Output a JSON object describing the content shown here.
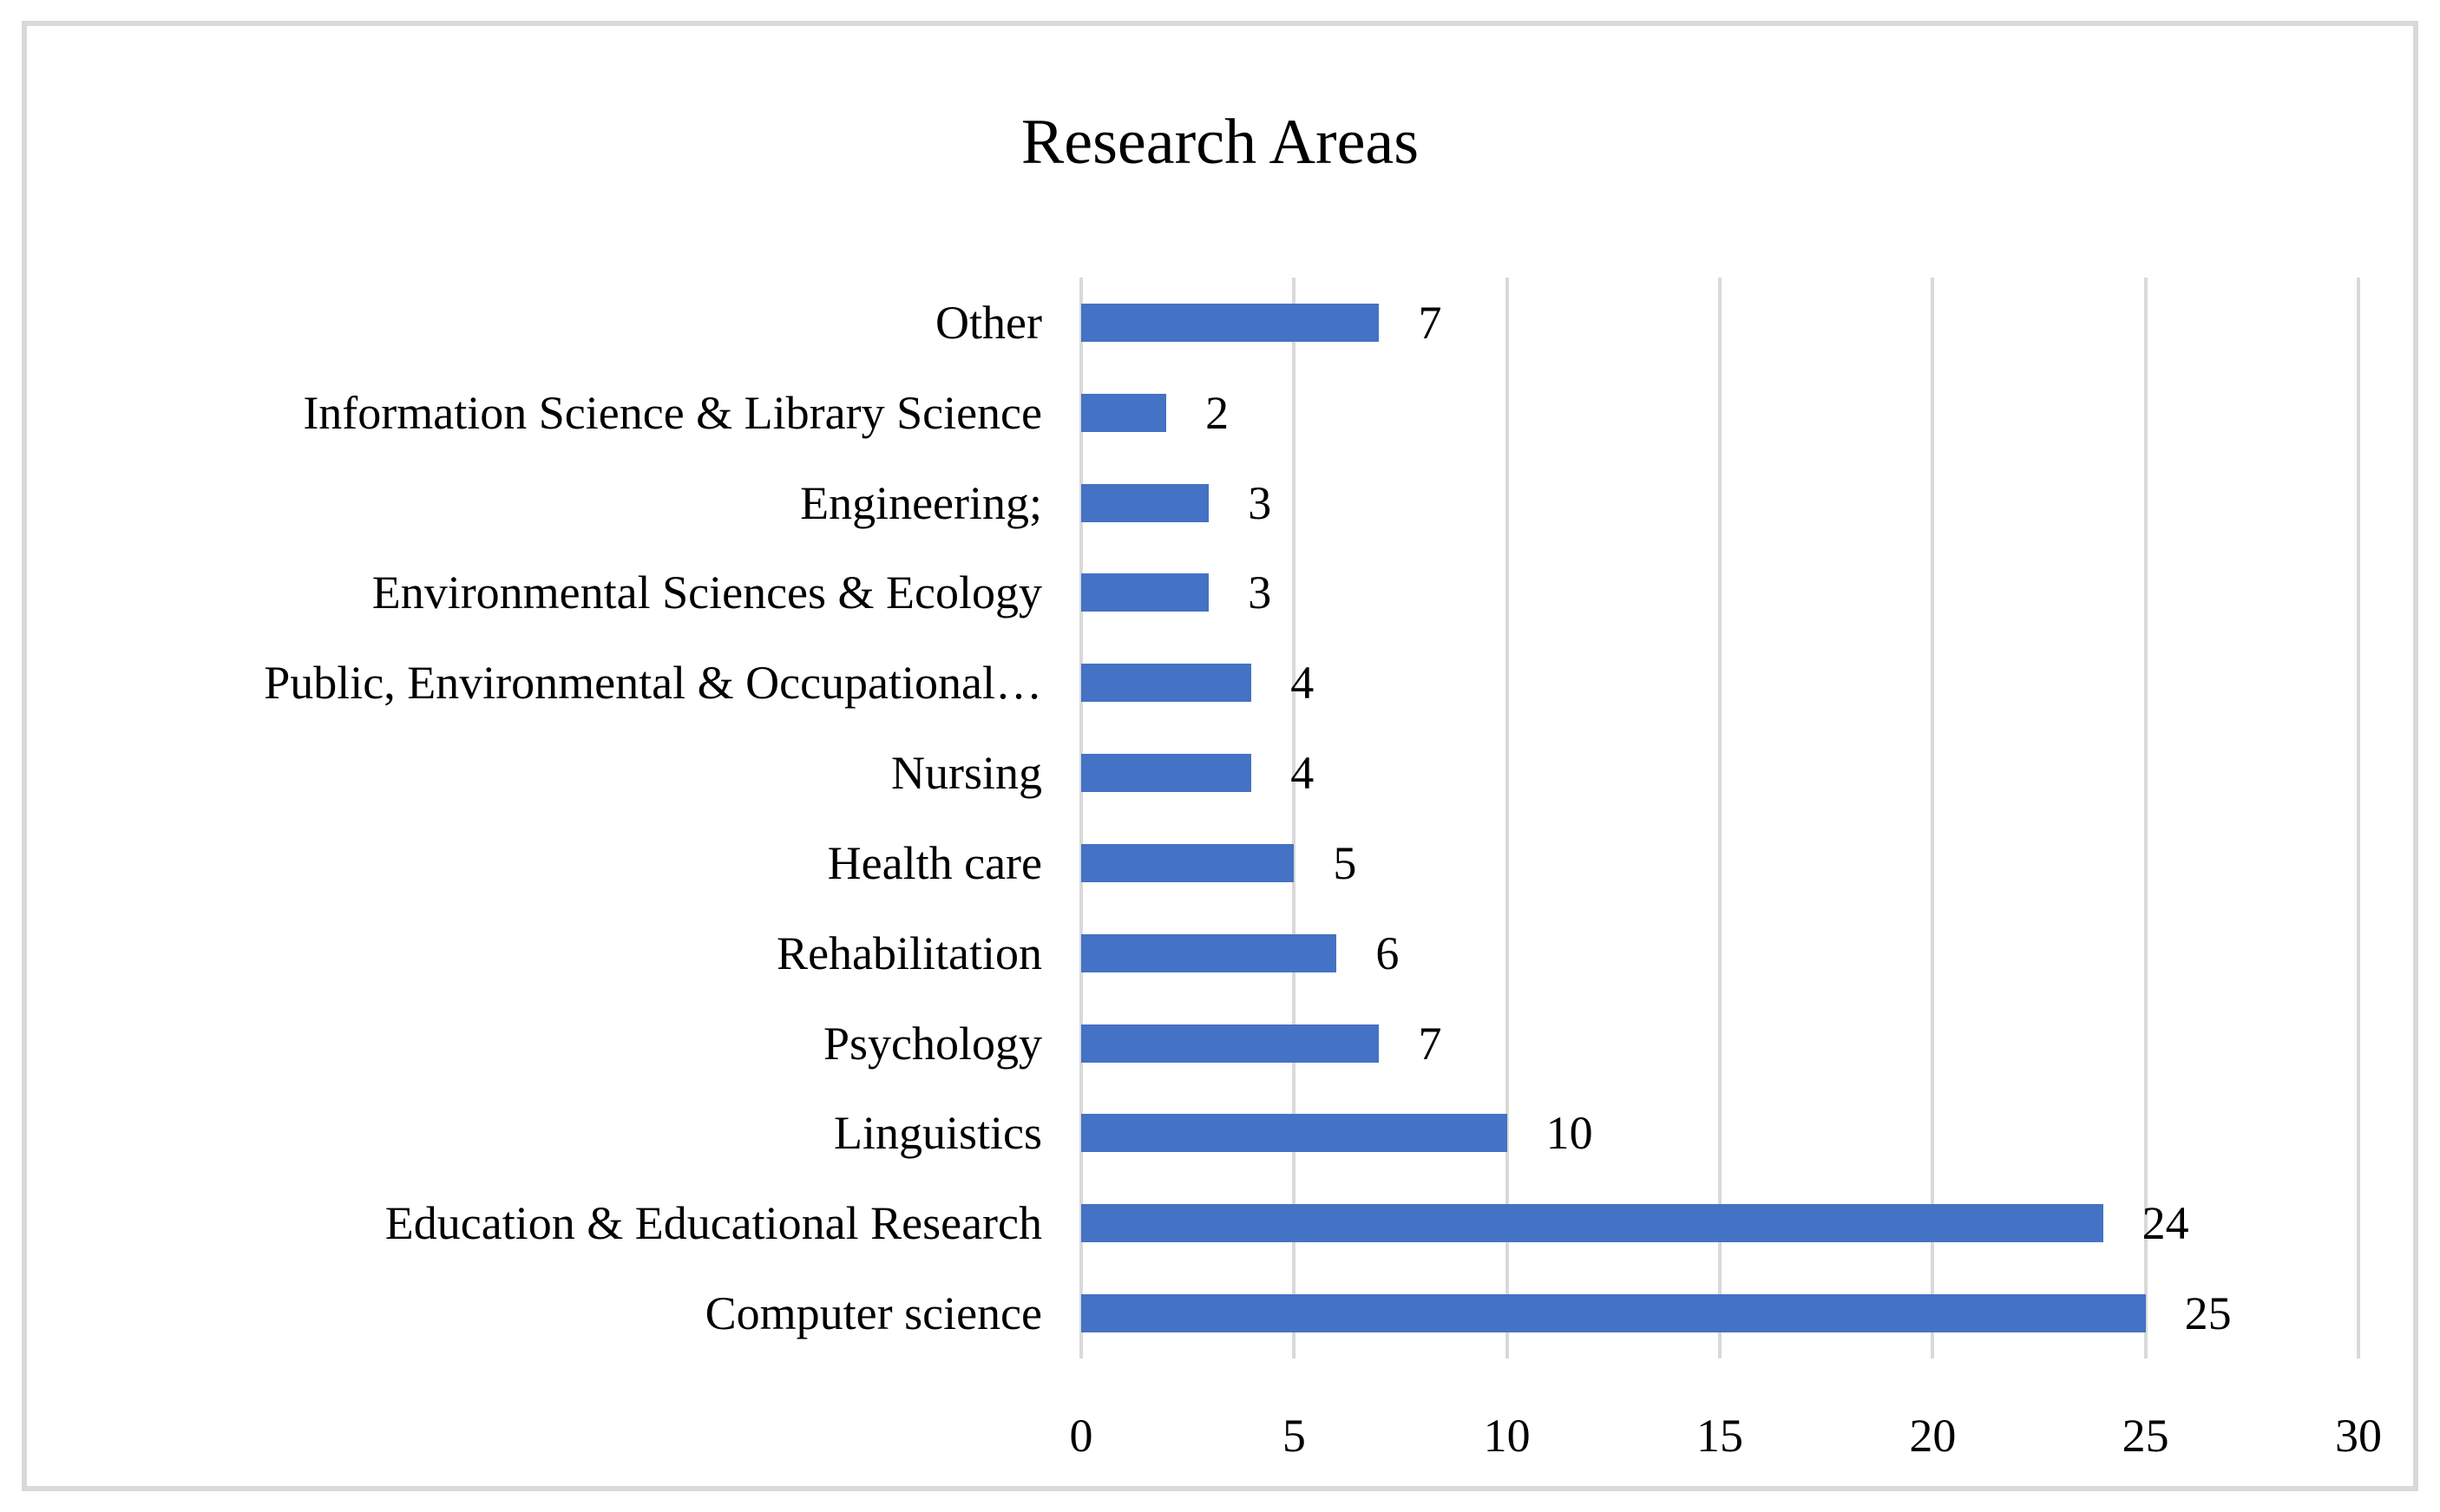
{
  "colors": {
    "bar": "#4472C4",
    "gridline": "#D9D9D9",
    "frame_border": "#D9D9D9",
    "text": "#000000",
    "background": "#FFFFFF"
  },
  "chart_data": {
    "type": "bar",
    "orientation": "horizontal",
    "title": "Research Areas",
    "categories": [
      "Other",
      "Information Science & Library Science",
      "Engineering;",
      "Environmental Sciences & Ecology",
      "Public, Environmental & Occupational…",
      "Nursing",
      "Health care",
      "Rehabilitation",
      "Psychology",
      "Linguistics",
      "Education & Educational Research",
      "Computer science"
    ],
    "values": [
      7,
      2,
      3,
      3,
      4,
      4,
      5,
      6,
      7,
      10,
      24,
      25
    ],
    "data_labels": [
      "7",
      "2",
      "3",
      "3",
      "4",
      "4",
      "5",
      "6",
      "7",
      "10",
      "24",
      "25"
    ],
    "xlabel": "",
    "ylabel": "",
    "xlim": [
      0,
      30
    ],
    "x_ticks": [
      0,
      5,
      10,
      15,
      20,
      25,
      30
    ],
    "grid": true,
    "legend_position": "none"
  }
}
